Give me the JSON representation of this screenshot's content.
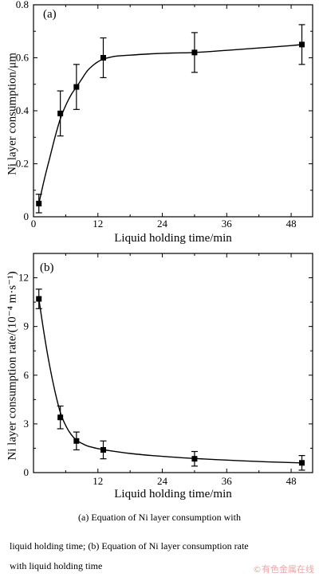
{
  "chart_data": [
    {
      "type": "line",
      "panel_label": "(a)",
      "xlabel": "Liquid holding time/min",
      "ylabel": "Ni layer consumption/μm",
      "xlim": [
        0,
        52
      ],
      "ylim": [
        0,
        0.8
      ],
      "xticks": [
        0,
        12,
        24,
        36,
        48
      ],
      "yticks": [
        0,
        0.2,
        0.4,
        0.6,
        0.8
      ],
      "xtick_labels": [
        "0",
        "12",
        "24",
        "36",
        "48"
      ],
      "ytick_labels": [
        "0",
        "0.2",
        "0.4",
        "0.6",
        "0.8"
      ],
      "grid": false,
      "points": [
        {
          "x": 1,
          "y": 0.05,
          "err": 0.035
        },
        {
          "x": 5,
          "y": 0.39,
          "err": 0.085
        },
        {
          "x": 8,
          "y": 0.49,
          "err": 0.085
        },
        {
          "x": 13,
          "y": 0.6,
          "err": 0.075
        },
        {
          "x": 30,
          "y": 0.62,
          "err": 0.075
        },
        {
          "x": 50,
          "y": 0.65,
          "err": 0.075
        }
      ],
      "fit_curve": [
        [
          1,
          0.05
        ],
        [
          2,
          0.14
        ],
        [
          3,
          0.22
        ],
        [
          4,
          0.3
        ],
        [
          5,
          0.37
        ],
        [
          6,
          0.42
        ],
        [
          7,
          0.46
        ],
        [
          8,
          0.49
        ],
        [
          9,
          0.52
        ],
        [
          10,
          0.55
        ],
        [
          11,
          0.57
        ],
        [
          12,
          0.585
        ],
        [
          13,
          0.595
        ],
        [
          15,
          0.605
        ],
        [
          18,
          0.61
        ],
        [
          22,
          0.615
        ],
        [
          26,
          0.618
        ],
        [
          30,
          0.62
        ],
        [
          36,
          0.628
        ],
        [
          42,
          0.637
        ],
        [
          48,
          0.646
        ],
        [
          50,
          0.65
        ]
      ]
    },
    {
      "type": "line",
      "panel_label": "(b)",
      "xlabel": "Liquid holding time/min",
      "ylabel": "Ni layer consumption rate/(10⁻⁴ m·s⁻¹)",
      "xlim": [
        0,
        52
      ],
      "ylim": [
        0,
        13.5
      ],
      "xticks": [
        12,
        24,
        36,
        48
      ],
      "yticks": [
        0,
        3,
        6,
        9,
        12
      ],
      "xtick_labels": [
        "12",
        "24",
        "36",
        "48"
      ],
      "ytick_labels": [
        "0",
        "3",
        "6",
        "9",
        "12"
      ],
      "grid": false,
      "points": [
        {
          "x": 1,
          "y": 10.7,
          "err": 0.6
        },
        {
          "x": 5,
          "y": 3.4,
          "err": 0.7
        },
        {
          "x": 8,
          "y": 1.95,
          "err": 0.55
        },
        {
          "x": 13,
          "y": 1.4,
          "err": 0.55
        },
        {
          "x": 30,
          "y": 0.85,
          "err": 0.45
        },
        {
          "x": 50,
          "y": 0.6,
          "err": 0.45
        }
      ],
      "fit_curve": [
        [
          1,
          10.7
        ],
        [
          2,
          8.5
        ],
        [
          3,
          6.6
        ],
        [
          4,
          5.0
        ],
        [
          5,
          3.7
        ],
        [
          6,
          2.9
        ],
        [
          7,
          2.35
        ],
        [
          8,
          2.0
        ],
        [
          9,
          1.8
        ],
        [
          10,
          1.65
        ],
        [
          12,
          1.48
        ],
        [
          14,
          1.36
        ],
        [
          18,
          1.18
        ],
        [
          22,
          1.05
        ],
        [
          26,
          0.95
        ],
        [
          30,
          0.87
        ],
        [
          36,
          0.77
        ],
        [
          42,
          0.68
        ],
        [
          48,
          0.62
        ],
        [
          50,
          0.6
        ]
      ]
    }
  ],
  "caption": {
    "line1": "(a) Equation of Ni layer consumption with",
    "line2": "liquid holding time; (b) Equation of Ni layer consumption rate",
    "line3": "with liquid holding time"
  },
  "watermark": "©有色金属在线"
}
